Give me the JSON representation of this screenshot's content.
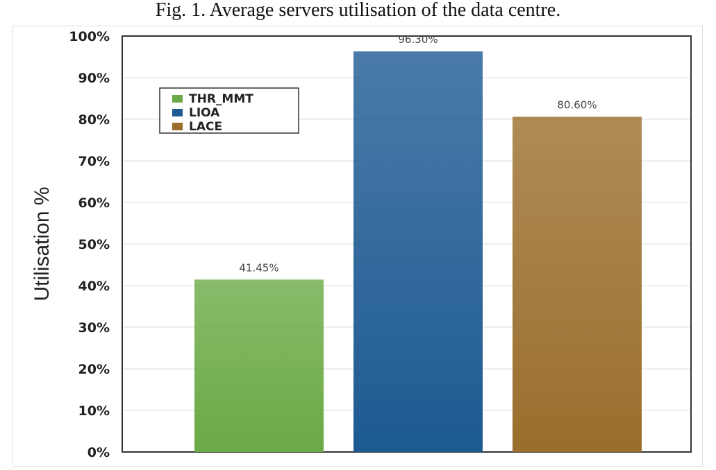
{
  "caption": "Fig. 1.  Average servers utilisation of the data centre.",
  "chart_data": {
    "type": "bar",
    "title": "",
    "xlabel": "",
    "ylabel": "Utilisation %",
    "ylim": [
      0,
      100
    ],
    "yticks": [
      "0%",
      "10%",
      "20%",
      "30%",
      "40%",
      "50%",
      "60%",
      "70%",
      "80%",
      "90%",
      "100%"
    ],
    "grid": true,
    "legend_position": "top-left",
    "series": [
      {
        "name": "THR_MMT",
        "value": 41.45,
        "label": "41.45%",
        "color": "#6aaa45"
      },
      {
        "name": "LIOA",
        "value": 96.3,
        "label": "96.30%",
        "color": "#1d5a92"
      },
      {
        "name": "LACE",
        "value": 80.6,
        "label": "80.60%",
        "color": "#9a6e2c"
      }
    ]
  }
}
